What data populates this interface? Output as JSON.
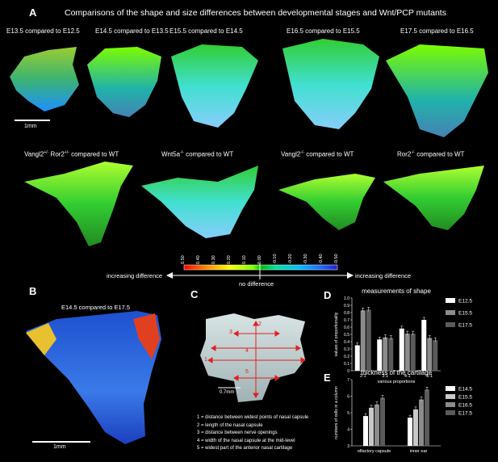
{
  "panelA": {
    "letter": "A",
    "title": "Comparisons of the shape and size differences between developmental stages and Wnt/PCP mutants",
    "row1_labels": [
      "E13.5 compared to E12.5",
      "E14.5 compared to E13.5",
      "E15.5 compared to E14.5",
      "E16.5 compared to E15.5",
      "E17.5 compared to E16.5"
    ],
    "row2_labels": [
      {
        "pre": "Vangl2",
        "sup": "+/-",
        "mid": " Ror2",
        "sup2": "+/-",
        "post": " compared to WT"
      },
      {
        "pre": "Wnt5a",
        "sup": "-/-",
        "mid": "",
        "sup2": "",
        "post": " compared to WT"
      },
      {
        "pre": "Vangl2",
        "sup": "-/-",
        "mid": "",
        "sup2": "",
        "post": " compared to WT"
      },
      {
        "pre": "Ror2",
        "sup": "-/-",
        "mid": "",
        "sup2": "",
        "post": " compared to WT"
      }
    ],
    "scale": "1mm",
    "colorbar": {
      "ticks": [
        "0.50",
        "0.40",
        "0.30",
        "0.20",
        "0.10",
        "0.00",
        "-0.10",
        "-0.20",
        "-0.30",
        "-0.40",
        "-0.50"
      ],
      "left_label": "increasing difference",
      "center_label": "no difference",
      "right_label": "increasing difference"
    }
  },
  "panelB": {
    "letter": "B",
    "title": "E14.5 compared to E17.5",
    "scale": "1mm"
  },
  "panelC": {
    "letter": "C",
    "scale": "0.7mm",
    "numbers": [
      "1",
      "2",
      "3",
      "4",
      "5"
    ],
    "legend": [
      "1 = distance between widest points of nasal capsule",
      "2 = length of the nasal capsule",
      "3 = distance between nerve openings",
      "4 = width of the nasal capsule at the mid-level",
      "5 = widest part of the anterior nasal cartilage"
    ]
  },
  "panelD": {
    "letter": "D"
  },
  "panelE": {
    "letter": "E"
  },
  "chart_data": [
    {
      "type": "bar",
      "title": "measurements of shape",
      "xlabel": "various proportions",
      "ylabel": "values of proportionality",
      "categories": [
        "2:1",
        "3:1",
        "4:1",
        "5:1"
      ],
      "ylim": [
        0,
        1.0
      ],
      "yticks": [
        "0",
        "0.1",
        "0.2",
        "0.3",
        "0.4",
        "0.5",
        "0.6",
        "0.7",
        "0.8",
        "0.9",
        "1.0"
      ],
      "series": [
        {
          "name": "E12.5",
          "color": "#ffffff",
          "values": [
            0.35,
            0.43,
            0.58,
            0.7
          ]
        },
        {
          "name": "E15.5",
          "color": "#8c8c8c",
          "values": [
            0.83,
            0.46,
            0.51,
            0.45
          ]
        },
        {
          "name": "E17.5",
          "color": "#5a5a5a",
          "values": [
            0.84,
            0.45,
            0.51,
            0.42
          ]
        }
      ]
    },
    {
      "type": "bar",
      "title": "thickness of the cartilage",
      "xlabel": "",
      "ylabel": "numbers of cells in a column",
      "categories": [
        "olfactory capsule",
        "inner ear"
      ],
      "ylim": [
        3,
        7
      ],
      "yticks": [
        "3",
        "4",
        "5",
        "6",
        "7"
      ],
      "series": [
        {
          "name": "E14.5",
          "color": "#ffffff",
          "values": [
            4.8,
            4.7
          ]
        },
        {
          "name": "E15.5",
          "color": "#c8c8c8",
          "values": [
            5.3,
            5.2
          ]
        },
        {
          "name": "E16.5",
          "color": "#8c8c8c",
          "values": [
            5.5,
            5.8
          ]
        },
        {
          "name": "E17.5",
          "color": "#5a5a5a",
          "values": [
            5.9,
            6.4
          ]
        }
      ]
    }
  ]
}
